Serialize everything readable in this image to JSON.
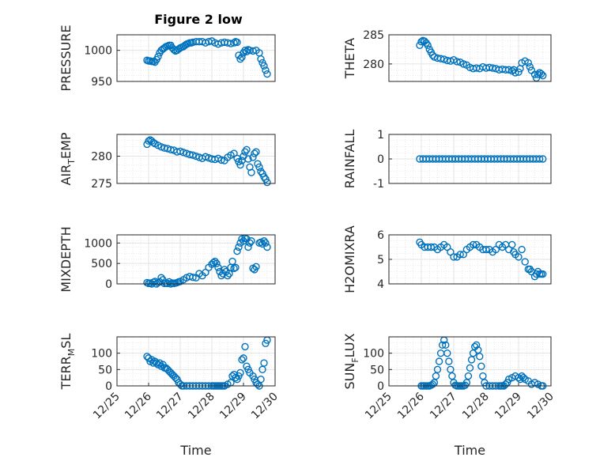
{
  "figure": {
    "title": "Figure 2 low",
    "marker_color": "#0072BD"
  },
  "chart_data": [
    {
      "type": "scatter",
      "ylabel": "PRESSURE",
      "xlabel": "",
      "xlim": [
        0,
        5
      ],
      "ylim": [
        950,
        1025
      ],
      "yticks": [
        950,
        1000
      ],
      "ytick_labels": [
        "950",
        "1000"
      ],
      "xticks": [],
      "xtick_labels": [],
      "grid": true,
      "x": [
        0.95,
        1.0,
        1.05,
        1.1,
        1.15,
        1.2,
        1.25,
        1.3,
        1.35,
        1.4,
        1.45,
        1.5,
        1.55,
        1.6,
        1.65,
        1.7,
        1.75,
        1.8,
        1.85,
        1.9,
        1.95,
        2.0,
        2.05,
        2.1,
        2.15,
        2.2,
        2.25,
        2.3,
        2.35,
        2.4,
        2.5,
        2.6,
        2.7,
        2.8,
        2.9,
        3.0,
        3.1,
        3.2,
        3.3,
        3.4,
        3.5,
        3.6,
        3.7,
        3.75,
        3.8,
        3.85,
        3.9,
        3.95,
        4.0,
        4.05,
        4.1,
        4.15,
        4.2,
        4.3,
        4.4,
        4.5,
        4.55,
        4.6,
        4.65,
        4.7,
        4.75
      ],
      "y": [
        984,
        983,
        983,
        982,
        982,
        981,
        985,
        990,
        996,
        1000,
        1002,
        1004,
        1006,
        1007,
        1008,
        1008,
        1004,
        1001,
        999,
        1000,
        1002,
        1004,
        1005,
        1006,
        1008,
        1010,
        1011,
        1012,
        1012,
        1013,
        1014,
        1014,
        1014,
        1012,
        1014,
        1015,
        1012,
        1010,
        1012,
        1013,
        1012,
        1011,
        1012,
        1014,
        1013,
        992,
        986,
        989,
        996,
        1000,
        998,
        1001,
        1000,
        999,
        1000,
        996,
        986,
        980,
        975,
        968,
        962
      ]
    },
    {
      "type": "scatter",
      "ylabel": "THETA",
      "xlabel": "",
      "xlim": [
        0,
        5
      ],
      "ylim": [
        277,
        285
      ],
      "yticks": [
        280,
        285
      ],
      "ytick_labels": [
        "280",
        "285"
      ],
      "xticks": [],
      "xtick_labels": [],
      "grid": true,
      "x": [
        0.95,
        1.0,
        1.05,
        1.1,
        1.15,
        1.2,
        1.25,
        1.3,
        1.35,
        1.4,
        1.5,
        1.6,
        1.7,
        1.8,
        1.9,
        2.0,
        2.1,
        2.2,
        2.3,
        2.4,
        2.5,
        2.6,
        2.7,
        2.8,
        2.9,
        3.0,
        3.1,
        3.2,
        3.3,
        3.4,
        3.5,
        3.6,
        3.7,
        3.8,
        3.85,
        3.9,
        4.0,
        4.05,
        4.1,
        4.2,
        4.3,
        4.35,
        4.4,
        4.5,
        4.55,
        4.6,
        4.65,
        4.7,
        4.75
      ],
      "y": [
        283.2,
        283.8,
        284.0,
        283.9,
        283.6,
        283.2,
        282.5,
        282.0,
        281.5,
        281.2,
        281.0,
        280.9,
        280.8,
        280.6,
        280.5,
        280.7,
        280.4,
        280.3,
        280.0,
        279.8,
        279.4,
        279.2,
        279.3,
        279.2,
        279.5,
        279.3,
        279.4,
        279.3,
        279.2,
        279.0,
        279.1,
        279.0,
        279.0,
        278.8,
        279.0,
        278.5,
        278.6,
        279.2,
        280.2,
        280.5,
        280.2,
        279.5,
        278.9,
        278.2,
        277.6,
        278.2,
        278.5,
        278.3,
        278.0
      ]
    },
    {
      "type": "scatter",
      "ylabel": "AIR_TEMP",
      "xlabel": "",
      "xlim": [
        0,
        5
      ],
      "ylim": [
        275,
        284
      ],
      "yticks": [
        275,
        280
      ],
      "ytick_labels": [
        "275",
        "280"
      ],
      "xticks": [],
      "xtick_labels": [],
      "grid": true,
      "x": [
        0.95,
        1.0,
        1.05,
        1.1,
        1.15,
        1.2,
        1.3,
        1.4,
        1.5,
        1.6,
        1.7,
        1.8,
        1.9,
        2.0,
        2.1,
        2.2,
        2.3,
        2.4,
        2.5,
        2.6,
        2.7,
        2.8,
        2.9,
        3.0,
        3.1,
        3.2,
        3.3,
        3.4,
        3.5,
        3.6,
        3.7,
        3.8,
        3.85,
        3.9,
        3.95,
        4.0,
        4.05,
        4.1,
        4.15,
        4.2,
        4.25,
        4.3,
        4.35,
        4.4,
        4.45,
        4.5,
        4.55,
        4.6,
        4.65,
        4.7,
        4.75
      ],
      "y": [
        282.2,
        282.8,
        283.0,
        282.8,
        282.5,
        282.3,
        282.0,
        281.7,
        281.5,
        281.4,
        281.2,
        281.1,
        280.8,
        280.9,
        280.7,
        280.5,
        280.3,
        280.2,
        280.0,
        279.8,
        279.6,
        279.9,
        279.7,
        279.5,
        279.4,
        279.6,
        279.3,
        279.2,
        279.8,
        280.2,
        280.5,
        279.6,
        279.0,
        278.4,
        279.2,
        280.0,
        280.8,
        281.2,
        279.5,
        278.0,
        277.0,
        279.8,
        280.5,
        280.8,
        278.6,
        278.0,
        277.2,
        276.8,
        276.2,
        275.8,
        275.2
      ]
    },
    {
      "type": "scatter",
      "ylabel": "RAINFALL",
      "xlabel": "",
      "xlim": [
        0,
        5
      ],
      "ylim": [
        -1,
        1
      ],
      "yticks": [
        -1,
        0,
        1
      ],
      "ytick_labels": [
        "-1",
        "0",
        "1"
      ],
      "xticks": [],
      "xtick_labels": [],
      "grid": true,
      "x": [
        0.95,
        1.05,
        1.15,
        1.25,
        1.35,
        1.45,
        1.55,
        1.65,
        1.75,
        1.85,
        1.95,
        2.05,
        2.15,
        2.25,
        2.35,
        2.45,
        2.55,
        2.65,
        2.75,
        2.85,
        2.95,
        3.05,
        3.15,
        3.25,
        3.35,
        3.45,
        3.55,
        3.65,
        3.75,
        3.85,
        3.95,
        4.05,
        4.15,
        4.25,
        4.35,
        4.45,
        4.55,
        4.65,
        4.75
      ],
      "y": [
        0,
        0,
        0,
        0,
        0,
        0,
        0,
        0,
        0,
        0,
        0,
        0,
        0,
        0,
        0,
        0,
        0,
        0,
        0,
        0,
        0,
        0,
        0,
        0,
        0,
        0,
        0,
        0,
        0,
        0,
        0,
        0,
        0,
        0,
        0,
        0,
        0,
        0,
        0
      ]
    },
    {
      "type": "scatter",
      "ylabel": "MIXDEPTH",
      "xlabel": "",
      "xlim": [
        0,
        5
      ],
      "ylim": [
        0,
        1200
      ],
      "yticks": [
        0,
        500,
        1000
      ],
      "ytick_labels": [
        "0",
        "500",
        "1000"
      ],
      "xticks": [],
      "xtick_labels": [],
      "grid": true,
      "x": [
        0.95,
        1.0,
        1.05,
        1.1,
        1.15,
        1.2,
        1.25,
        1.3,
        1.35,
        1.4,
        1.45,
        1.5,
        1.55,
        1.6,
        1.65,
        1.7,
        1.75,
        1.8,
        1.85,
        1.9,
        1.95,
        2.0,
        2.1,
        2.2,
        2.3,
        2.4,
        2.5,
        2.6,
        2.7,
        2.8,
        2.9,
        3.0,
        3.05,
        3.1,
        3.15,
        3.2,
        3.25,
        3.3,
        3.35,
        3.4,
        3.45,
        3.5,
        3.55,
        3.6,
        3.65,
        3.7,
        3.75,
        3.8,
        3.85,
        3.9,
        3.95,
        4.0,
        4.05,
        4.1,
        4.15,
        4.2,
        4.25,
        4.3,
        4.35,
        4.4,
        4.5,
        4.55,
        4.6,
        4.65,
        4.7,
        4.75
      ],
      "y": [
        30,
        10,
        20,
        0,
        40,
        60,
        0,
        30,
        50,
        150,
        100,
        10,
        20,
        10,
        50,
        0,
        20,
        10,
        20,
        30,
        50,
        60,
        100,
        150,
        180,
        160,
        150,
        250,
        200,
        280,
        400,
        480,
        520,
        550,
        500,
        400,
        300,
        200,
        250,
        350,
        300,
        200,
        250,
        400,
        550,
        380,
        400,
        800,
        900,
        1000,
        1100,
        1050,
        1120,
        1100,
        900,
        1000,
        1050,
        380,
        350,
        420,
        1000,
        1020,
        980,
        1050,
        1000,
        900
      ]
    },
    {
      "type": "scatter",
      "ylabel": "H2OMIXRA",
      "xlabel": "",
      "xlim": [
        0,
        5
      ],
      "ylim": [
        4,
        6
      ],
      "yticks": [
        4,
        5,
        6
      ],
      "ytick_labels": [
        "4",
        "5",
        "6"
      ],
      "xticks": [],
      "xtick_labels": [],
      "grid": true,
      "x": [
        0.95,
        1.0,
        1.1,
        1.2,
        1.3,
        1.4,
        1.5,
        1.6,
        1.7,
        1.8,
        1.9,
        2.0,
        2.1,
        2.2,
        2.3,
        2.4,
        2.5,
        2.6,
        2.7,
        2.8,
        2.9,
        3.0,
        3.1,
        3.2,
        3.3,
        3.4,
        3.5,
        3.6,
        3.7,
        3.8,
        3.85,
        3.9,
        4.0,
        4.1,
        4.2,
        4.3,
        4.35,
        4.4,
        4.5,
        4.55,
        4.6,
        4.65,
        4.7,
        4.75
      ],
      "y": [
        5.7,
        5.6,
        5.5,
        5.5,
        5.5,
        5.5,
        5.4,
        5.5,
        5.6,
        5.5,
        5.3,
        5.1,
        5.1,
        5.2,
        5.2,
        5.4,
        5.5,
        5.6,
        5.6,
        5.5,
        5.4,
        5.4,
        5.4,
        5.3,
        5.4,
        5.6,
        5.5,
        5.6,
        5.4,
        5.6,
        5.3,
        5.2,
        5.1,
        5.4,
        4.9,
        4.6,
        4.6,
        4.5,
        4.3,
        4.4,
        4.5,
        4.4,
        4.4,
        4.4
      ]
    },
    {
      "type": "scatter",
      "ylabel": "TERR_MSL",
      "xlabel": "Time",
      "xlim": [
        0,
        5
      ],
      "ylim": [
        0,
        150
      ],
      "yticks": [
        0,
        50,
        100
      ],
      "ytick_labels": [
        "0",
        "50",
        "100"
      ],
      "xticks": [
        0,
        1,
        2,
        3,
        4,
        5
      ],
      "xtick_labels": [
        "12/25",
        "12/26",
        "12/27",
        "12/28",
        "12/29",
        "12/30"
      ],
      "grid": true,
      "x": [
        0.95,
        1.0,
        1.05,
        1.1,
        1.15,
        1.2,
        1.25,
        1.3,
        1.35,
        1.4,
        1.45,
        1.5,
        1.55,
        1.6,
        1.65,
        1.7,
        1.75,
        1.8,
        1.85,
        1.9,
        1.95,
        2.0,
        2.05,
        2.1,
        2.2,
        2.3,
        2.4,
        2.5,
        2.6,
        2.7,
        2.8,
        2.9,
        3.0,
        3.05,
        3.1,
        3.15,
        3.2,
        3.25,
        3.3,
        3.35,
        3.4,
        3.5,
        3.6,
        3.65,
        3.7,
        3.75,
        3.8,
        3.85,
        3.9,
        3.95,
        4.0,
        4.05,
        4.1,
        4.15,
        4.2,
        4.3,
        4.35,
        4.4,
        4.45,
        4.5,
        4.55,
        4.6,
        4.65,
        4.7,
        4.75
      ],
      "y": [
        90,
        85,
        75,
        80,
        70,
        75,
        70,
        65,
        70,
        60,
        65,
        55,
        55,
        50,
        45,
        40,
        35,
        30,
        25,
        20,
        10,
        5,
        0,
        0,
        0,
        0,
        0,
        0,
        0,
        0,
        0,
        0,
        0,
        0,
        0,
        0,
        0,
        0,
        0,
        0,
        0,
        5,
        10,
        30,
        35,
        25,
        20,
        30,
        40,
        80,
        85,
        120,
        60,
        50,
        40,
        30,
        20,
        10,
        5,
        0,
        20,
        50,
        70,
        130,
        140
      ]
    },
    {
      "type": "scatter",
      "ylabel": "SUN_FLUX",
      "xlabel": "Time",
      "xlim": [
        0,
        5
      ],
      "ylim": [
        0,
        150
      ],
      "yticks": [
        0,
        50,
        100
      ],
      "ytick_labels": [
        "0",
        "50",
        "100"
      ],
      "xticks": [
        0,
        1,
        2,
        3,
        4,
        5
      ],
      "xtick_labels": [
        "12/25",
        "12/26",
        "12/27",
        "12/28",
        "12/29",
        "12/30"
      ],
      "grid": true,
      "x": [
        1.0,
        1.05,
        1.1,
        1.15,
        1.2,
        1.25,
        1.3,
        1.35,
        1.4,
        1.45,
        1.5,
        1.55,
        1.6,
        1.65,
        1.7,
        1.75,
        1.8,
        1.85,
        1.9,
        1.95,
        2.0,
        2.05,
        2.1,
        2.15,
        2.2,
        2.25,
        2.3,
        2.35,
        2.4,
        2.45,
        2.5,
        2.55,
        2.6,
        2.65,
        2.7,
        2.75,
        2.8,
        2.85,
        2.9,
        2.95,
        3.0,
        3.1,
        3.2,
        3.3,
        3.4,
        3.45,
        3.5,
        3.55,
        3.6,
        3.65,
        3.7,
        3.8,
        3.9,
        4.0,
        4.05,
        4.1,
        4.15,
        4.2,
        4.3,
        4.4,
        4.5,
        4.6,
        4.7,
        4.75
      ],
      "y": [
        0,
        0,
        0,
        0,
        0,
        0,
        2,
        5,
        10,
        30,
        50,
        75,
        100,
        125,
        140,
        125,
        100,
        75,
        50,
        30,
        10,
        2,
        0,
        0,
        0,
        0,
        0,
        2,
        10,
        30,
        55,
        80,
        100,
        120,
        125,
        110,
        90,
        60,
        30,
        10,
        0,
        0,
        0,
        0,
        0,
        0,
        0,
        0,
        5,
        10,
        20,
        25,
        30,
        25,
        20,
        30,
        25,
        20,
        15,
        5,
        10,
        5,
        0,
        0
      ]
    }
  ]
}
